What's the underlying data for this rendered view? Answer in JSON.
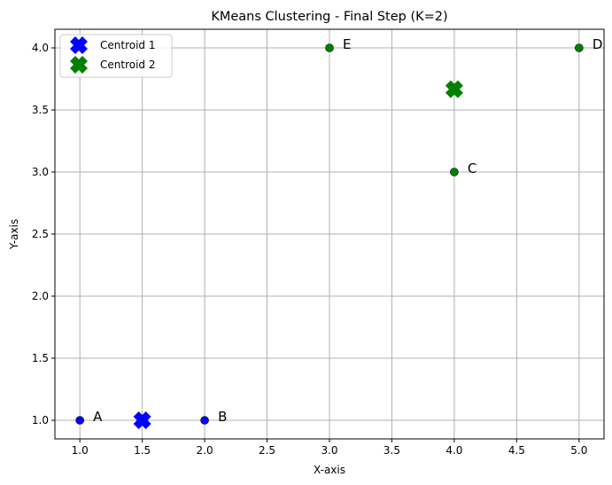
{
  "chart_data": {
    "type": "scatter",
    "title": "KMeans Clustering - Final Step (K=2)",
    "xlabel": "X-axis",
    "ylabel": "Y-axis",
    "xlim": [
      0.8,
      5.2
    ],
    "ylim": [
      0.85,
      4.15
    ],
    "xticks": [
      1.0,
      1.5,
      2.0,
      2.5,
      3.0,
      3.5,
      4.0,
      4.5,
      5.0
    ],
    "xtick_labels": [
      "1.0",
      "1.5",
      "2.0",
      "2.5",
      "3.0",
      "3.5",
      "4.0",
      "4.5",
      "5.0"
    ],
    "yticks": [
      1.0,
      1.5,
      2.0,
      2.5,
      3.0,
      3.5,
      4.0
    ],
    "ytick_labels": [
      "1.0",
      "1.5",
      "2.0",
      "2.5",
      "3.0",
      "3.5",
      "4.0"
    ],
    "grid": true,
    "legend_position": "top-left",
    "points": [
      {
        "label": "A",
        "x": 1,
        "y": 1,
        "color": "#0000ff"
      },
      {
        "label": "B",
        "x": 2,
        "y": 1,
        "color": "#0000ff"
      },
      {
        "label": "C",
        "x": 4,
        "y": 3,
        "color": "#008000"
      },
      {
        "label": "D",
        "x": 5,
        "y": 4,
        "color": "#008000"
      },
      {
        "label": "E",
        "x": 3,
        "y": 4,
        "color": "#008000"
      }
    ],
    "centroids": [
      {
        "name": "Centroid 1",
        "x": 1.5,
        "y": 1.0,
        "color": "#0000ff",
        "marker": "X"
      },
      {
        "name": "Centroid 2",
        "x": 4.0,
        "y": 3.667,
        "color": "#008000",
        "marker": "X"
      }
    ]
  }
}
